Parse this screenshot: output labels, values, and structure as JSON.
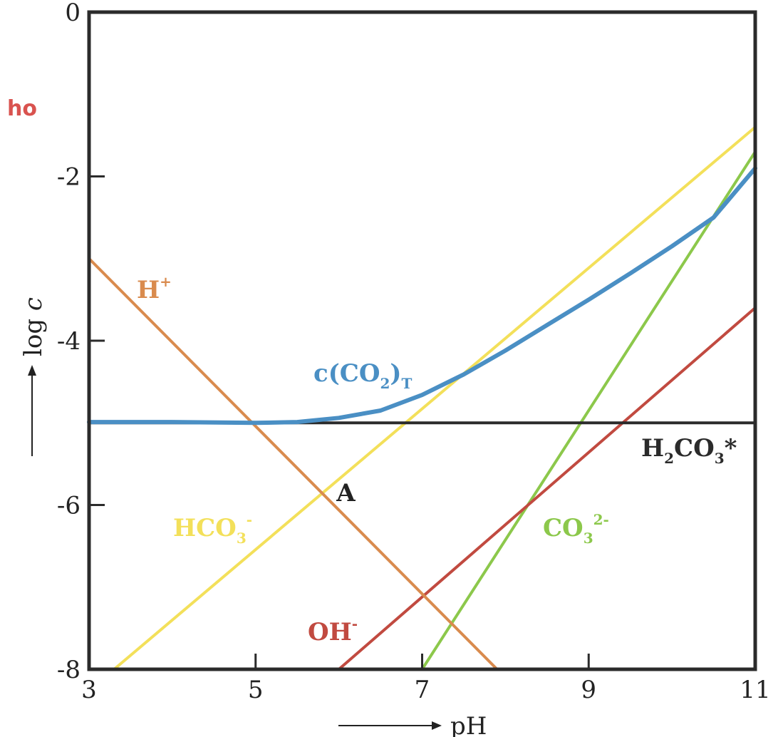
{
  "corner_text": "ho",
  "colors": {
    "H2CO3": "#2b2b2b",
    "cCO2T": "#4a8fc4",
    "HCO3": "#f3e05a",
    "CO3": "#8cc84b",
    "OH": "#c14a40",
    "H": "#d98b4e",
    "corner": "#d9534f"
  },
  "chart_data": {
    "type": "line",
    "xlabel": "pH",
    "ylabel": "log c",
    "xlim": [
      3,
      11
    ],
    "ylim": [
      -8,
      0
    ],
    "xticks": [
      "3",
      "5",
      "7",
      "9",
      "11"
    ],
    "yticks": [
      "0",
      "-2",
      "-4",
      "-6",
      "-8"
    ],
    "series": [
      {
        "key": "H2CO3",
        "name": "H2CO3*",
        "label_main": "H",
        "label_sub1": "2",
        "label_mid": "CO",
        "label_sub2": "3",
        "label_tail": "*",
        "x": [
          3,
          11
        ],
        "y": [
          -5.0,
          -5.0
        ]
      },
      {
        "key": "cCO2T",
        "name": "c(CO2)T",
        "label_main": "c(CO",
        "label_sub1": "2",
        "label_mid": ")",
        "label_sub2": "T",
        "x": [
          3,
          4,
          5,
          5.5,
          6,
          6.5,
          7,
          7.5,
          8,
          8.5,
          9,
          9.5,
          10,
          10.5,
          11
        ],
        "y": [
          -4.99,
          -4.99,
          -5.0,
          -4.99,
          -4.94,
          -4.85,
          -4.66,
          -4.41,
          -4.12,
          -3.81,
          -3.5,
          -3.18,
          -2.85,
          -2.5,
          -1.9
        ]
      },
      {
        "key": "HCO3",
        "name": "HCO3-",
        "label_main": "HCO",
        "label_sub1": "3",
        "label_sup": "-",
        "x": [
          3.3,
          11
        ],
        "y": [
          -8.0,
          -1.4
        ]
      },
      {
        "key": "CO3",
        "name": "CO32-",
        "label_main": "CO",
        "label_sub1": "3",
        "label_sup": "2-",
        "x": [
          7.0,
          11
        ],
        "y": [
          -8.0,
          -1.7
        ]
      },
      {
        "key": "OH",
        "name": "OH-",
        "label_main": "OH",
        "label_sup": "-",
        "x": [
          6.0,
          11
        ],
        "y": [
          -8.0,
          -3.6
        ]
      },
      {
        "key": "H",
        "name": "H+",
        "label_main": "H",
        "label_sup": "+",
        "x": [
          3,
          7.9
        ],
        "y": [
          -3.0,
          -8.0
        ]
      }
    ],
    "annotations": [
      {
        "text": "A",
        "x": 5.8,
        "y": -5.85
      }
    ]
  }
}
